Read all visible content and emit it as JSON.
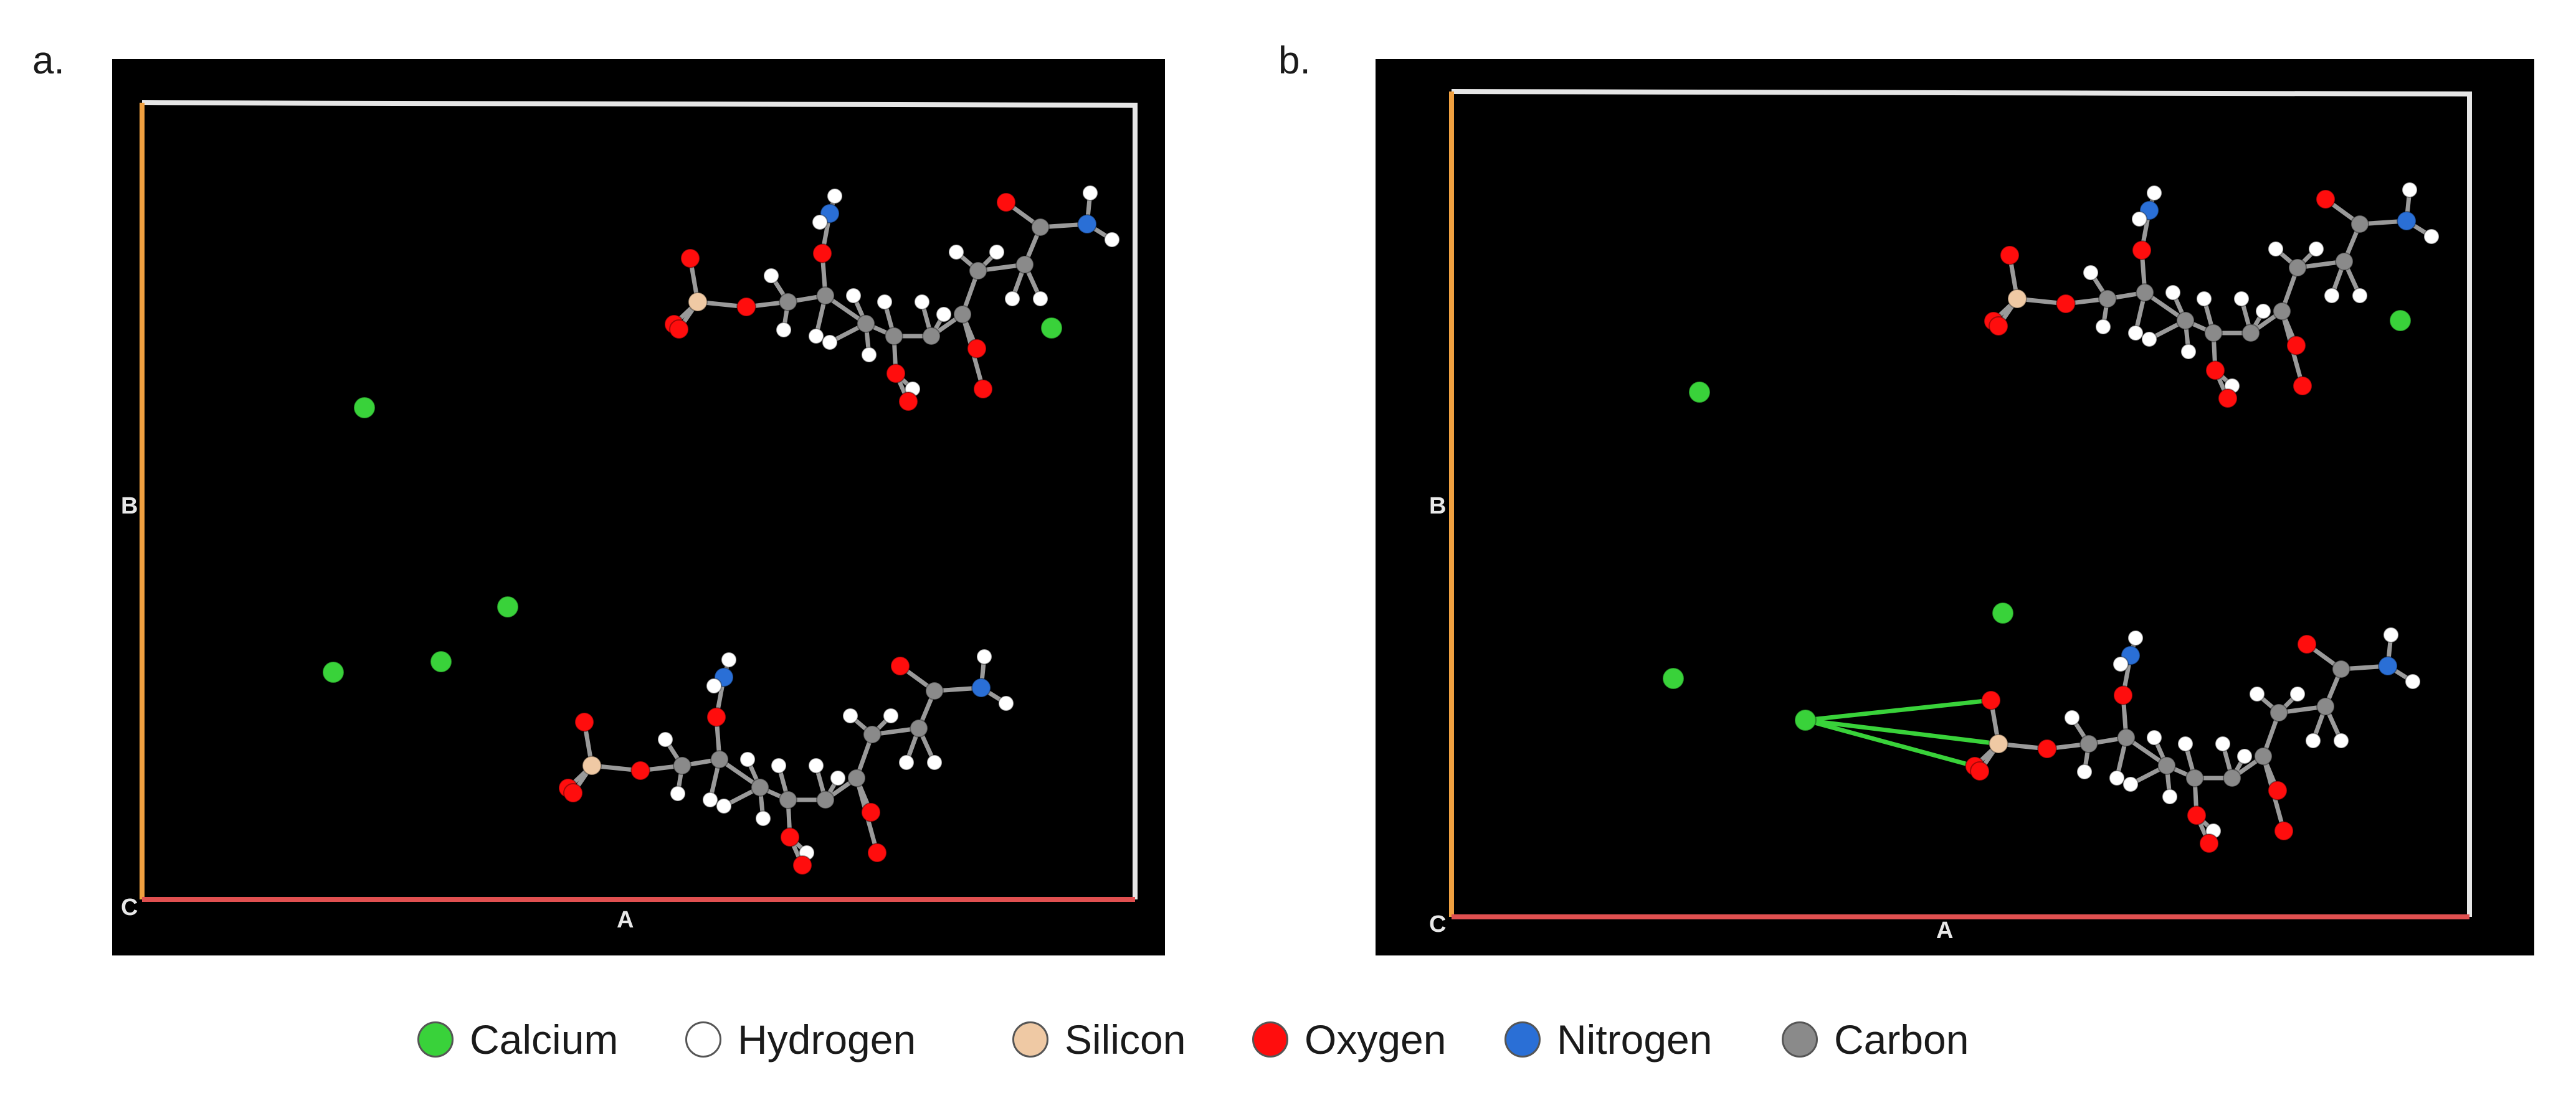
{
  "panels": [
    {
      "id": "a",
      "label": "a.",
      "axis_labels": {
        "b": "B",
        "c": "C",
        "a": "A"
      }
    },
    {
      "id": "b",
      "label": "b.",
      "axis_labels": {
        "b": "B",
        "c": "C",
        "a": "A"
      }
    }
  ],
  "legend": [
    {
      "name": "Calcium",
      "color": "#39d23a"
    },
    {
      "name": "Hydrogen",
      "color": "#ffffff"
    },
    {
      "name": "Silicon",
      "color": "#efc9a4"
    },
    {
      "name": "Oxygen",
      "color": "#ff0d0d"
    },
    {
      "name": "Nitrogen",
      "color": "#2a6fd6"
    },
    {
      "name": "Carbon",
      "color": "#8a8a8a"
    }
  ],
  "atom_colors": {
    "calcium": "#39d23a",
    "hydrogen": "#ffffff",
    "silicon": "#efc9a4",
    "oxygen": "#ff0d0d",
    "nitrogen": "#2a6fd6",
    "carbon": "#8a8a8a",
    "bond_interaction": "#39d23a"
  }
}
